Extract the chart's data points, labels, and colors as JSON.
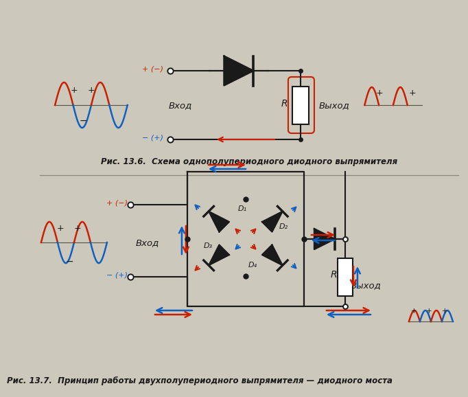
{
  "bg_color": "#cdc8bc",
  "title1": "Рис. 13.6.  Схема однополупериодного диодного выпрямителя",
  "title2": "Рис. 13.7.  Принцип работы двухполупериодного выпрямителя — диодного моста",
  "red": "#c82000",
  "blue": "#1060c0",
  "black": "#1a1a1a",
  "wire_color": "#1a1a1a"
}
